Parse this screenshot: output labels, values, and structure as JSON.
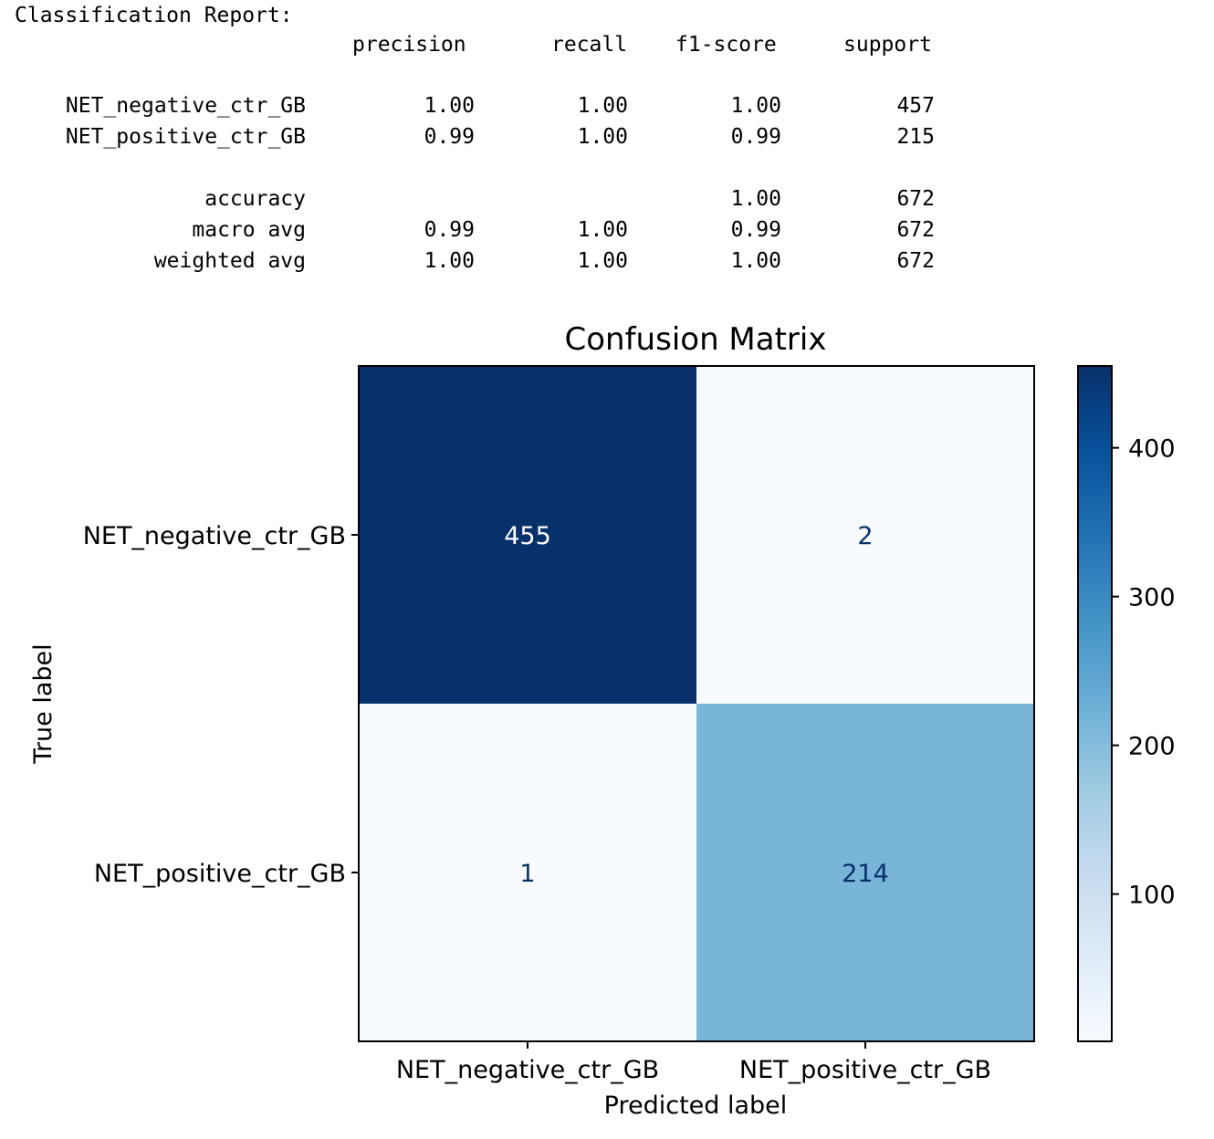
{
  "report": {
    "title": "Classification Report:",
    "headers": [
      "precision",
      "recall",
      "f1-score",
      "support"
    ],
    "rows": [
      {
        "label": "NET_negative_ctr_GB",
        "precision": "1.00",
        "recall": "1.00",
        "f1": "1.00",
        "support": "457"
      },
      {
        "label": "NET_positive_ctr_GB",
        "precision": "0.99",
        "recall": "1.00",
        "f1": "0.99",
        "support": "215"
      },
      {
        "label": "accuracy",
        "precision": "",
        "recall": "",
        "f1": "1.00",
        "support": "672"
      },
      {
        "label": "macro avg",
        "precision": "0.99",
        "recall": "1.00",
        "f1": "0.99",
        "support": "672"
      },
      {
        "label": "weighted avg",
        "precision": "1.00",
        "recall": "1.00",
        "f1": "1.00",
        "support": "672"
      }
    ]
  },
  "chart_data": {
    "type": "heatmap",
    "title": "Confusion Matrix",
    "xlabel": "Predicted label",
    "ylabel": "True label",
    "x_categories": [
      "NET_negative_ctr_GB",
      "NET_positive_ctr_GB"
    ],
    "y_categories": [
      "NET_negative_ctr_GB",
      "NET_positive_ctr_GB"
    ],
    "values": [
      [
        455,
        2
      ],
      [
        1,
        214
      ]
    ],
    "colormap": "Blues",
    "colorbar": {
      "ticks": [
        100,
        200,
        300,
        400
      ],
      "range": [
        1,
        455
      ]
    },
    "colors": {
      "low": "#f7fbff",
      "high": "#08306b",
      "text_dark_cell": "#ffffff",
      "text_light_cell": "#08306b"
    }
  }
}
